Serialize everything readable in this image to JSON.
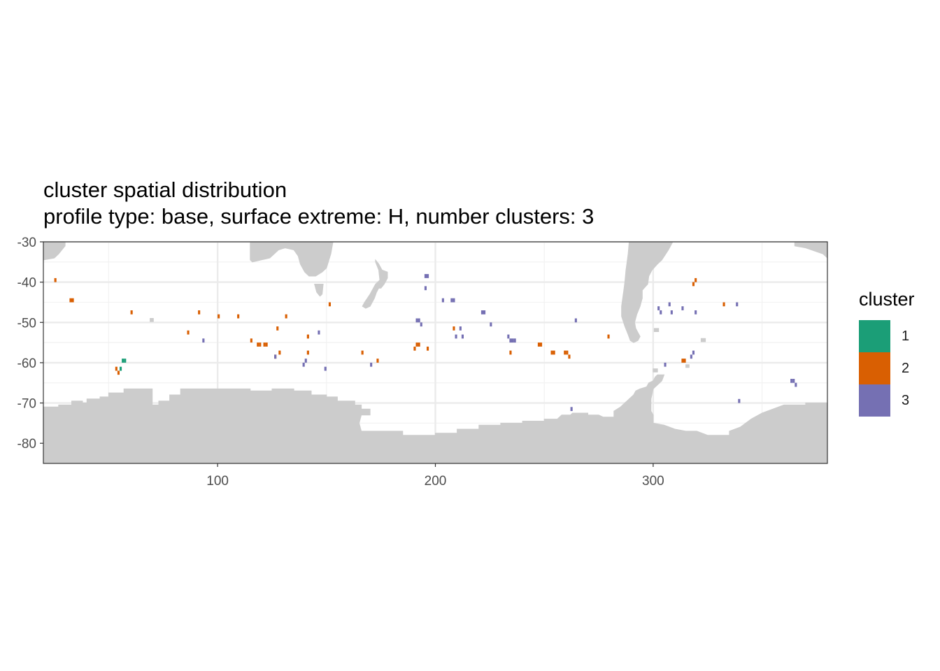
{
  "chart_data": {
    "type": "map",
    "title": "cluster spatial distribution",
    "subtitle": "profile type: base, surface extreme: H, number clusters: 3",
    "xlabel": "",
    "ylabel": "",
    "xlim": [
      20,
      380
    ],
    "ylim": [
      -85,
      -30
    ],
    "x_ticks": [
      100,
      200,
      300
    ],
    "y_ticks": [
      -80,
      -70,
      -60,
      -50,
      -40,
      -30
    ],
    "grid": true,
    "land_color": "#CCCCCC",
    "legend": {
      "title": "cluster",
      "position": "right",
      "items": [
        {
          "label": "1",
          "color": "#1B9E77"
        },
        {
          "label": "2",
          "color": "#D95F02"
        },
        {
          "label": "3",
          "color": "#7570B3"
        }
      ]
    },
    "series": [
      {
        "cluster": "1",
        "points": [
          [
            55.5,
            -61.5
          ],
          [
            56.5,
            -59.5
          ],
          [
            57.5,
            -59.5
          ]
        ]
      },
      {
        "cluster": "2",
        "points": [
          [
            25.5,
            -39.5
          ],
          [
            32.5,
            -44.5
          ],
          [
            33.5,
            -44.5
          ],
          [
            53.5,
            -61.5
          ],
          [
            54.5,
            -62.5
          ],
          [
            60.5,
            -47.5
          ],
          [
            86.5,
            -52.5
          ],
          [
            91.5,
            -47.5
          ],
          [
            100.5,
            -48.5
          ],
          [
            109.5,
            -48.5
          ],
          [
            115.5,
            -54.5
          ],
          [
            118.5,
            -55.5
          ],
          [
            119.5,
            -55.5
          ],
          [
            121.5,
            -55.5
          ],
          [
            122.5,
            -55.5
          ],
          [
            126.5,
            -58.5
          ],
          [
            127.5,
            -51.5
          ],
          [
            128.5,
            -57.5
          ],
          [
            131.5,
            -48.5
          ],
          [
            141.5,
            -53.5
          ],
          [
            141.5,
            -57.5
          ],
          [
            151.5,
            -45.5
          ],
          [
            166.5,
            -57.5
          ],
          [
            173.5,
            -59.5
          ],
          [
            190.5,
            -56.5
          ],
          [
            191.5,
            -55.5
          ],
          [
            192.5,
            -55.5
          ],
          [
            196.5,
            -56.5
          ],
          [
            208.5,
            -51.5
          ],
          [
            234.5,
            -57.5
          ],
          [
            247.5,
            -55.5
          ],
          [
            248.5,
            -55.5
          ],
          [
            253.5,
            -57.5
          ],
          [
            254.5,
            -57.5
          ],
          [
            259.5,
            -57.5
          ],
          [
            260.5,
            -57.5
          ],
          [
            261.5,
            -58.5
          ],
          [
            279.5,
            -53.5
          ],
          [
            313.5,
            -59.5
          ],
          [
            314.5,
            -59.5
          ],
          [
            318.5,
            -40.5
          ],
          [
            319.5,
            -39.5
          ],
          [
            332.5,
            -45.5
          ]
        ]
      },
      {
        "cluster": "3",
        "points": [
          [
            93.5,
            -54.5
          ],
          [
            126.5,
            -58.5
          ],
          [
            139.5,
            -60.5
          ],
          [
            140.5,
            -59.5
          ],
          [
            146.5,
            -52.5
          ],
          [
            149.5,
            -61.5
          ],
          [
            170.5,
            -60.5
          ],
          [
            191.5,
            -49.5
          ],
          [
            192.5,
            -49.5
          ],
          [
            193.5,
            -50.5
          ],
          [
            195.5,
            -38.5
          ],
          [
            196.5,
            -38.5
          ],
          [
            195.5,
            -41.5
          ],
          [
            203.5,
            -44.5
          ],
          [
            207.5,
            -44.5
          ],
          [
            208.5,
            -44.5
          ],
          [
            209.5,
            -53.5
          ],
          [
            211.5,
            -51.5
          ],
          [
            212.5,
            -53.5
          ],
          [
            221.5,
            -47.5
          ],
          [
            222.5,
            -47.5
          ],
          [
            225.5,
            -50.5
          ],
          [
            233.5,
            -53.5
          ],
          [
            234.5,
            -54.5
          ],
          [
            235.5,
            -54.5
          ],
          [
            236.5,
            -54.5
          ],
          [
            262.5,
            -71.5
          ],
          [
            264.5,
            -49.5
          ],
          [
            302.5,
            -46.5
          ],
          [
            303.5,
            -47.5
          ],
          [
            305.5,
            -60.5
          ],
          [
            307.5,
            -45.5
          ],
          [
            308.5,
            -47.5
          ],
          [
            313.5,
            -46.5
          ],
          [
            317.5,
            -58.5
          ],
          [
            318.5,
            -57.5
          ],
          [
            319.5,
            -47.5
          ],
          [
            338.5,
            -45.5
          ],
          [
            339.5,
            -69.5
          ],
          [
            363.5,
            -64.5
          ],
          [
            364.5,
            -64.5
          ],
          [
            365.5,
            -65.5
          ]
        ]
      }
    ]
  }
}
